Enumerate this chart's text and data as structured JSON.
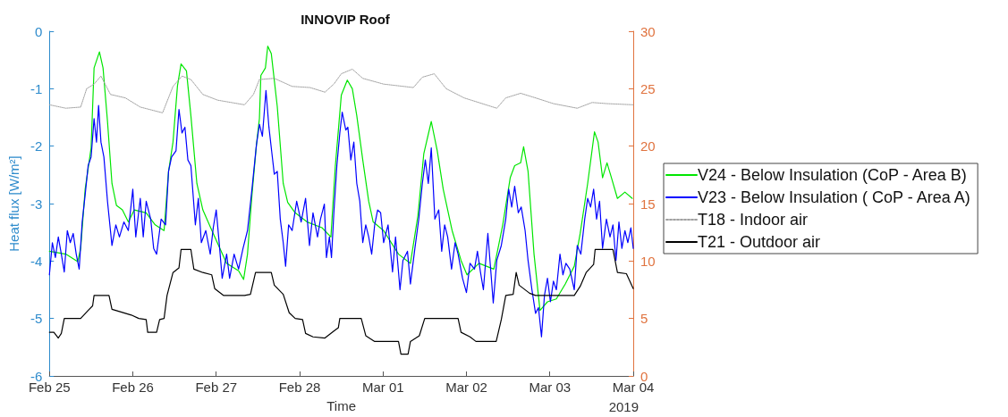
{
  "chart_data": {
    "type": "line",
    "title": "INNOVIP Roof",
    "xlabel": "Time",
    "ylabel": "Heat flux [W/m²]",
    "annotations": [
      "2019"
    ],
    "xlim": [
      "2019-02-25",
      "2019-03-04"
    ],
    "xticks": [
      {
        "value": "2019-02-25",
        "label": "Feb 25"
      },
      {
        "value": "2019-02-26",
        "label": "Feb 26"
      },
      {
        "value": "2019-02-27",
        "label": "Feb 27"
      },
      {
        "value": "2019-02-28",
        "label": "Feb 28"
      },
      {
        "value": "2019-03-01",
        "label": "Mar 01"
      },
      {
        "value": "2019-03-02",
        "label": "Mar 02"
      },
      {
        "value": "2019-03-03",
        "label": "Mar 03"
      },
      {
        "value": "2019-03-04",
        "label": "Mar 04"
      }
    ],
    "ylim": [
      -6,
      0
    ],
    "yticks": [
      -6,
      -5,
      -4,
      -3,
      -2,
      -1,
      0
    ],
    "y2lim": [
      0,
      30
    ],
    "y2ticks": [
      0,
      5,
      10,
      15,
      20,
      25,
      30
    ],
    "grid": false,
    "legend": "right",
    "series": [
      {
        "name": "V24 - Below Insulation (CoP - Area B)",
        "color": "#00e600",
        "line_style": "solid",
        "x": [
          "2019-02-25T00:00",
          "2019-02-25T04:43",
          "2019-02-25T08:09",
          "2019-02-25T09:00",
          "2019-02-25T10:17",
          "2019-02-25T12:00",
          "2019-02-25T12:51",
          "2019-02-25T14:24",
          "2019-02-25T15:26",
          "2019-02-25T16:43",
          "2019-02-25T18:00",
          "2019-02-25T19:17",
          "2019-02-25T21:00",
          "2019-02-25T22:43",
          "2019-02-26T00:26",
          "2019-02-26T03:51",
          "2019-02-26T06:26",
          "2019-02-26T09:00",
          "2019-02-26T10:17",
          "2019-02-26T11:34",
          "2019-02-26T12:51",
          "2019-02-26T13:53",
          "2019-02-26T15:26",
          "2019-02-26T16:43",
          "2019-02-26T18:26",
          "2019-02-26T20:09",
          "2019-02-26T23:34",
          "2019-02-27T03:00",
          "2019-02-27T06:26",
          "2019-02-27T07:53",
          "2019-02-27T09:00",
          "2019-02-27T10:17",
          "2019-02-27T11:34",
          "2019-02-27T12:26",
          "2019-02-27T12:51",
          "2019-02-27T14:09",
          "2019-02-27T14:50",
          "2019-02-27T15:51",
          "2019-02-27T17:34",
          "2019-02-27T19:17",
          "2019-02-27T20:34",
          "2019-02-27T22:43",
          "2019-02-28T02:09",
          "2019-02-28T06:26",
          "2019-02-28T09:00",
          "2019-02-28T10:17",
          "2019-02-28T12:00",
          "2019-02-28T13:43",
          "2019-02-28T15:10",
          "2019-02-28T16:27",
          "2019-02-28T18:10",
          "2019-02-28T19:53",
          "2019-02-28T21:10",
          "2019-03-01T00:10",
          "2019-03-01T04:27",
          "2019-03-01T07:53",
          "2019-03-01T10:02",
          "2019-03-01T11:44",
          "2019-03-01T13:53",
          "2019-03-01T15:36",
          "2019-03-01T17:19",
          "2019-03-01T19:53",
          "2019-03-01T22:27",
          "2019-03-02T00:10",
          "2019-03-02T03:36",
          "2019-03-02T07:53",
          "2019-03-02T10:27",
          "2019-03-02T12:36",
          "2019-03-02T13:53",
          "2019-03-02T15:36",
          "2019-03-02T16:27",
          "2019-03-02T17:44",
          "2019-03-02T19:27",
          "2019-03-02T21:10",
          "2019-03-02T23:19",
          "2019-03-03T01:53",
          "2019-03-03T04:27",
          "2019-03-03T07:02",
          "2019-03-03T08:44",
          "2019-03-03T10:53",
          "2019-03-03T12:51",
          "2019-03-03T13:53",
          "2019-03-03T15:10",
          "2019-03-03T16:27",
          "2019-03-03T17:44",
          "2019-03-03T19:27",
          "2019-03-03T21:36",
          "2019-03-03T23:44"
        ],
        "values": [
          -3.83,
          -3.88,
          -4.01,
          -3.78,
          -2.75,
          -2.03,
          -0.64,
          -0.36,
          -0.64,
          -1.57,
          -2.65,
          -3.03,
          -3.11,
          -3.32,
          -3.11,
          -3.16,
          -3.37,
          -3.47,
          -2.44,
          -1.93,
          -0.95,
          -0.57,
          -0.69,
          -1.47,
          -2.65,
          -3.11,
          -3.58,
          -4.04,
          -4.17,
          -4.32,
          -3.88,
          -2.85,
          -1.98,
          -1.52,
          -0.77,
          -0.64,
          -0.26,
          -0.39,
          -1.31,
          -2.65,
          -2.98,
          -3.16,
          -3.32,
          -3.42,
          -3.58,
          -2.34,
          -1.11,
          -0.85,
          -1.0,
          -1.47,
          -2.24,
          -2.96,
          -3.32,
          -3.47,
          -3.88,
          -4.04,
          -3.21,
          -2.13,
          -1.57,
          -2.08,
          -2.75,
          -3.47,
          -3.99,
          -4.24,
          -4.04,
          -4.14,
          -3.37,
          -2.55,
          -2.34,
          -2.29,
          -2.01,
          -2.44,
          -3.88,
          -4.86,
          -4.71,
          -4.66,
          -4.4,
          -4.09,
          -3.52,
          -2.65,
          -1.75,
          -1.93,
          -2.55,
          -2.29,
          -2.55,
          -2.91,
          -2.8,
          -2.91
        ]
      },
      {
        "name": "V23 - Below Insulation ( CoP - Area A)",
        "color": "#0000ff",
        "line_style": "solid",
        "x": [
          "2019-02-25T00:00",
          "2019-02-25T00:51",
          "2019-02-25T01:43",
          "2019-02-25T02:34",
          "2019-02-25T03:26",
          "2019-02-25T04:17",
          "2019-02-25T05:09",
          "2019-02-25T06:00",
          "2019-02-25T06:51",
          "2019-02-25T07:43",
          "2019-02-25T08:34",
          "2019-02-25T09:26",
          "2019-02-25T10:17",
          "2019-02-25T11:09",
          "2019-02-25T12:00",
          "2019-02-25T12:51",
          "2019-02-25T13:33",
          "2019-02-25T14:09",
          "2019-02-25T14:50",
          "2019-02-25T15:41",
          "2019-02-25T16:43",
          "2019-02-25T18:00",
          "2019-02-25T19:07",
          "2019-02-25T20:09",
          "2019-02-25T21:26",
          "2019-02-25T22:43",
          "2019-02-26T00:00",
          "2019-02-26T00:51",
          "2019-02-26T02:09",
          "2019-02-26T03:00",
          "2019-02-26T03:51",
          "2019-02-26T05:09",
          "2019-02-26T06:00",
          "2019-02-26T06:51",
          "2019-02-26T08:09",
          "2019-02-26T09:26",
          "2019-02-26T10:17",
          "2019-02-26T11:09",
          "2019-02-26T12:26",
          "2019-02-26T13:17",
          "2019-02-26T14:09",
          "2019-02-26T15:00",
          "2019-02-26T15:51",
          "2019-02-26T16:43",
          "2019-02-26T18:00",
          "2019-02-26T18:51",
          "2019-02-26T19:43",
          "2019-02-26T21:00",
          "2019-02-26T22:17",
          "2019-02-26T23:09",
          "2019-02-27T00:00",
          "2019-02-27T00:51",
          "2019-02-27T01:43",
          "2019-02-27T03:00",
          "2019-02-27T03:51",
          "2019-02-27T05:09",
          "2019-02-27T06:26",
          "2019-02-27T07:43",
          "2019-02-27T09:00",
          "2019-02-27T10:17",
          "2019-02-27T11:34",
          "2019-02-27T12:26",
          "2019-02-27T13:17",
          "2019-02-27T14:19",
          "2019-02-27T15:10",
          "2019-02-27T16:02",
          "2019-02-27T16:43",
          "2019-02-27T17:34",
          "2019-02-27T18:26",
          "2019-02-27T19:17",
          "2019-02-27T19:58",
          "2019-02-27T20:50",
          "2019-02-27T21:51",
          "2019-02-27T23:09",
          "2019-02-28T00:26",
          "2019-02-28T01:43",
          "2019-02-28T02:50",
          "2019-02-28T03:51",
          "2019-02-28T05:09",
          "2019-02-28T06:00",
          "2019-02-28T07:07",
          "2019-02-28T07:43",
          "2019-02-28T08:34",
          "2019-02-28T09:10",
          "2019-02-28T09:51",
          "2019-02-28T10:43",
          "2019-02-28T11:34",
          "2019-02-28T12:15",
          "2019-02-28T13:17",
          "2019-02-28T13:53",
          "2019-02-28T14:44",
          "2019-02-28T15:36",
          "2019-02-28T16:27",
          "2019-02-28T17:19",
          "2019-02-28T18:10",
          "2019-02-28T19:02",
          "2019-02-28T19:53",
          "2019-02-28T20:44",
          "2019-02-28T21:36",
          "2019-02-28T22:27",
          "2019-02-28T23:19",
          "2019-03-01T00:10",
          "2019-03-01T01:27",
          "2019-03-01T02:44",
          "2019-03-01T03:36",
          "2019-03-01T04:53",
          "2019-03-01T05:44",
          "2019-03-01T07:02",
          "2019-03-01T07:53",
          "2019-03-01T09:10",
          "2019-03-01T10:17",
          "2019-03-01T11:19",
          "2019-03-01T12:10",
          "2019-03-01T13:02",
          "2019-03-01T13:53",
          "2019-03-01T14:55",
          "2019-03-01T16:02",
          "2019-03-01T16:53",
          "2019-03-01T17:44",
          "2019-03-01T18:36",
          "2019-03-01T19:43",
          "2019-03-01T20:44",
          "2019-03-01T21:36",
          "2019-03-01T22:53",
          "2019-03-02T00:00",
          "2019-03-02T01:02",
          "2019-03-02T02:19",
          "2019-03-02T03:10",
          "2019-03-02T04:02",
          "2019-03-02T04:53",
          "2019-03-02T06:10",
          "2019-03-02T07:02",
          "2019-03-02T07:43",
          "2019-03-02T08:44",
          "2019-03-02T10:02",
          "2019-03-02T11:19",
          "2019-03-02T12:10",
          "2019-03-02T13:02",
          "2019-03-02T13:53",
          "2019-03-02T14:55",
          "2019-03-02T15:46",
          "2019-03-02T16:53",
          "2019-03-02T17:44",
          "2019-03-02T18:51",
          "2019-03-02T19:53",
          "2019-03-02T20:44",
          "2019-03-02T21:36",
          "2019-03-02T22:27",
          "2019-03-02T23:19",
          "2019-03-03T00:10",
          "2019-03-03T01:02",
          "2019-03-03T01:53",
          "2019-03-03T02:55",
          "2019-03-03T03:46",
          "2019-03-03T04:38",
          "2019-03-03T05:44",
          "2019-03-03T07:02",
          "2019-03-03T07:53",
          "2019-03-03T08:55",
          "2019-03-03T10:02",
          "2019-03-03T10:53",
          "2019-03-03T11:44",
          "2019-03-03T12:36",
          "2019-03-03T13:27",
          "2019-03-03T14:19",
          "2019-03-03T15:10",
          "2019-03-03T16:17",
          "2019-03-03T17:19",
          "2019-03-03T18:10",
          "2019-03-03T19:02",
          "2019-03-03T19:53",
          "2019-03-03T20:44",
          "2019-03-03T21:36",
          "2019-03-03T22:27",
          "2019-03-03T23:19",
          "2019-03-04T00:00"
        ],
        "values": [
          -4.24,
          -3.68,
          -3.94,
          -3.58,
          -3.88,
          -4.19,
          -3.47,
          -3.68,
          -3.52,
          -3.88,
          -4.14,
          -3.32,
          -2.85,
          -2.34,
          -2.19,
          -1.52,
          -1.93,
          -1.29,
          -1.93,
          -2.19,
          -2.96,
          -3.73,
          -3.37,
          -3.58,
          -3.32,
          -3.47,
          -2.75,
          -3.58,
          -2.91,
          -3.58,
          -2.96,
          -3.27,
          -3.78,
          -3.88,
          -3.27,
          -3.37,
          -2.44,
          -2.19,
          -2.08,
          -1.36,
          -1.77,
          -1.67,
          -2.24,
          -2.34,
          -3.37,
          -2.91,
          -3.68,
          -3.47,
          -3.88,
          -3.42,
          -3.11,
          -3.68,
          -4.3,
          -3.88,
          -4.3,
          -3.88,
          -4.14,
          -3.78,
          -3.47,
          -2.75,
          -1.98,
          -1.62,
          -1.83,
          -1.03,
          -1.67,
          -2.13,
          -2.49,
          -2.44,
          -3.27,
          -3.68,
          -4.09,
          -3.37,
          -3.47,
          -2.96,
          -3.32,
          -2.91,
          -3.73,
          -3.16,
          -3.58,
          -3.27,
          -3.01,
          -3.94,
          -3.58,
          -3.94,
          -3.16,
          -2.34,
          -1.77,
          -1.41,
          -1.72,
          -1.67,
          -2.24,
          -1.93,
          -2.65,
          -2.96,
          -3.68,
          -3.37,
          -3.58,
          -3.88,
          -3.37,
          -3.11,
          -3.16,
          -3.68,
          -3.37,
          -4.19,
          -3.58,
          -4.5,
          -3.99,
          -3.83,
          -4.4,
          -3.78,
          -3.27,
          -2.65,
          -2.24,
          -2.65,
          -2.03,
          -3.27,
          -3.11,
          -3.83,
          -3.37,
          -3.58,
          -4.14,
          -3.68,
          -3.88,
          -4.3,
          -4.55,
          -4.04,
          -4.14,
          -3.83,
          -4.19,
          -4.5,
          -3.52,
          -4.19,
          -4.73,
          -3.99,
          -3.73,
          -3.27,
          -2.75,
          -3.06,
          -2.7,
          -3.16,
          -3.06,
          -3.47,
          -3.99,
          -4.5,
          -4.91,
          -4.81,
          -5.32,
          -4.6,
          -4.3,
          -4.71,
          -4.35,
          -4.5,
          -3.88,
          -4.24,
          -4.04,
          -4.14,
          -4.5,
          -3.73,
          -3.88,
          -3.27,
          -2.91,
          -3.06,
          -2.75,
          -3.27,
          -2.96,
          -3.78,
          -3.27,
          -3.58,
          -3.37,
          -3.99,
          -3.32,
          -3.78,
          -3.47,
          -3.68,
          -3.42,
          -3.78
        ]
      },
      {
        "name": "T18 - Indoor air",
        "color": "#a0a0a0",
        "line_style": "dotted",
        "axis": "y2",
        "x": [
          "2019-02-25T00:00",
          "2019-02-25T04:43",
          "2019-02-25T09:00",
          "2019-02-25T10:43",
          "2019-02-25T12:51",
          "2019-02-25T14:50",
          "2019-02-25T17:34",
          "2019-02-25T21:51",
          "2019-02-26T02:09",
          "2019-02-26T08:34",
          "2019-02-26T11:34",
          "2019-02-26T14:09",
          "2019-02-26T16:43",
          "2019-02-26T20:09",
          "2019-02-27T00:26",
          "2019-02-27T08:09",
          "2019-02-27T10:43",
          "2019-02-27T12:26",
          "2019-02-27T16:43",
          "2019-02-27T21:51",
          "2019-02-28T03:00",
          "2019-02-28T07:17",
          "2019-02-28T09:51",
          "2019-02-28T12:00",
          "2019-02-28T15:10",
          "2019-02-28T18:10",
          "2019-03-01T00:10",
          "2019-03-01T08:44",
          "2019-03-01T11:19",
          "2019-03-01T14:44",
          "2019-03-01T18:10",
          "2019-03-01T23:19",
          "2019-03-02T08:44",
          "2019-03-02T11:19",
          "2019-03-02T15:36",
          "2019-03-02T19:53",
          "2019-03-03T01:02",
          "2019-03-03T07:53",
          "2019-03-03T12:10",
          "2019-03-03T16:27",
          "2019-03-04T00:00"
        ],
        "values": [
          23.6,
          23.3,
          23.4,
          25.0,
          25.4,
          26.1,
          24.5,
          24.2,
          23.4,
          22.9,
          25.2,
          26.1,
          25.8,
          24.5,
          24.0,
          23.6,
          24.5,
          25.8,
          25.9,
          25.2,
          25.1,
          24.7,
          25.4,
          26.3,
          26.7,
          25.9,
          25.4,
          25.1,
          26.0,
          26.3,
          25.0,
          24.2,
          23.3,
          24.2,
          24.6,
          24.2,
          23.7,
          23.3,
          23.8,
          23.7,
          23.6
        ]
      },
      {
        "name": "T21 - Outdoor air",
        "color": "#000000",
        "line_style": "solid",
        "axis": "y2",
        "x": [
          "2019-02-25T00:00",
          "2019-02-25T01:17",
          "2019-02-25T02:34",
          "2019-02-25T03:26",
          "2019-02-25T04:17",
          "2019-02-25T09:00",
          "2019-02-25T11:09",
          "2019-02-25T12:26",
          "2019-02-25T12:51",
          "2019-02-25T17:09",
          "2019-02-25T18:00",
          "2019-02-25T20:09",
          "2019-02-25T23:34",
          "2019-02-26T01:43",
          "2019-02-26T03:51",
          "2019-02-26T04:17",
          "2019-02-26T06:51",
          "2019-02-26T07:43",
          "2019-02-26T09:00",
          "2019-02-26T09:51",
          "2019-02-26T11:34",
          "2019-02-26T13:17",
          "2019-02-26T13:53",
          "2019-02-26T16:43",
          "2019-02-26T17:34",
          "2019-02-26T20:09",
          "2019-02-26T22:43",
          "2019-02-26T23:34",
          "2019-02-27T02:09",
          "2019-02-27T08:09",
          "2019-02-27T09:51",
          "2019-02-27T11:19",
          "2019-02-27T15:51",
          "2019-02-27T16:43",
          "2019-02-27T19:17",
          "2019-02-27T21:00",
          "2019-02-27T22:43",
          "2019-02-28T00:51",
          "2019-02-28T01:43",
          "2019-02-28T03:51",
          "2019-02-28T07:17",
          "2019-02-28T09:51",
          "2019-02-28T11:09",
          "2019-02-28T11:34",
          "2019-02-28T17:44",
          "2019-02-28T19:02",
          "2019-02-28T21:36",
          "2019-03-01T04:27",
          "2019-03-01T05:09",
          "2019-03-01T07:12",
          "2019-03-01T07:53",
          "2019-03-01T10:27",
          "2019-03-01T12:00",
          "2019-03-01T21:36",
          "2019-03-01T22:27",
          "2019-03-02T01:02",
          "2019-03-02T02:44",
          "2019-03-02T08:34",
          "2019-03-02T10:02",
          "2019-03-02T11:19",
          "2019-03-02T13:27",
          "2019-03-02T14:19",
          "2019-03-02T15:10",
          "2019-03-02T18:10",
          "2019-03-02T19:53",
          "2019-03-03T07:02",
          "2019-03-03T08:44",
          "2019-03-03T10:27",
          "2019-03-03T12:36",
          "2019-03-03T13:02",
          "2019-03-03T18:10",
          "2019-03-03T19:27",
          "2019-03-03T22:02",
          "2019-03-04T00:00"
        ],
        "values": [
          3.8,
          3.8,
          3.3,
          3.7,
          5.0,
          5.0,
          5.7,
          6.1,
          7.0,
          7.0,
          5.8,
          5.6,
          5.3,
          5.0,
          4.9,
          3.8,
          3.8,
          4.9,
          5.0,
          7.0,
          9.0,
          9.4,
          11.0,
          11.0,
          9.3,
          9.0,
          8.8,
          7.6,
          7.0,
          7.0,
          7.1,
          9.0,
          9.0,
          7.9,
          7.1,
          5.5,
          5.0,
          4.9,
          3.7,
          3.4,
          3.3,
          3.9,
          4.2,
          5.0,
          5.0,
          3.5,
          3.0,
          3.0,
          1.9,
          1.9,
          3.0,
          3.5,
          5.0,
          5.0,
          3.8,
          3.4,
          3.0,
          3.0,
          4.9,
          7.0,
          7.1,
          9.0,
          7.9,
          7.2,
          7.0,
          7.0,
          7.8,
          9.0,
          9.7,
          11.0,
          11.0,
          9.0,
          8.9,
          7.6
        ]
      }
    ]
  }
}
